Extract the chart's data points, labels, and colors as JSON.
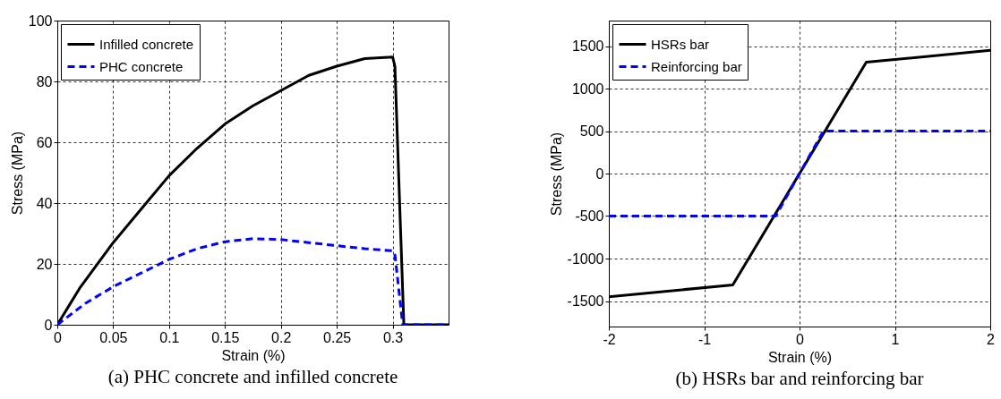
{
  "chart_data": [
    {
      "type": "line",
      "title": "(a) PHC concrete and infilled concrete",
      "xlabel": "Strain (%)",
      "ylabel": "Stress (MPa)",
      "xlim": [
        0,
        0.35
      ],
      "xticks": [
        0,
        0.05,
        0.1,
        0.15,
        0.2,
        0.25,
        0.3
      ],
      "ylim": [
        0,
        100
      ],
      "yticks": [
        0,
        20,
        40,
        60,
        80,
        100
      ],
      "grid": true,
      "legend": "top left",
      "series": [
        {
          "name": "Infilled concrete",
          "color": "#000000",
          "line_style": "solid",
          "x": [
            0,
            0.01,
            0.02,
            0.05,
            0.075,
            0.1,
            0.125,
            0.15,
            0.175,
            0.2,
            0.225,
            0.25,
            0.275,
            0.3,
            0.302,
            0.31,
            0.35
          ],
          "values": [
            0,
            6,
            12,
            27,
            38,
            49,
            58,
            66,
            72,
            77,
            82,
            85,
            87.5,
            88,
            85,
            0,
            0
          ]
        },
        {
          "name": "PHC concrete",
          "color": "#0000ff",
          "line_style": "dashed",
          "x": [
            0,
            0.025,
            0.05,
            0.075,
            0.1,
            0.125,
            0.15,
            0.175,
            0.2,
            0.225,
            0.25,
            0.275,
            0.3,
            0.302,
            0.309,
            0.35
          ],
          "values": [
            0,
            7,
            12.5,
            17,
            21.5,
            25,
            27.3,
            28.3,
            28,
            27,
            26,
            25,
            24.3,
            23,
            0,
            0
          ]
        }
      ]
    },
    {
      "type": "line",
      "title": "(b) HSRs bar and reinforcing bar",
      "xlabel": "Strain (%)",
      "ylabel": "Stress (MPa)",
      "xlim": [
        -2,
        2
      ],
      "xticks": [
        -2,
        -1,
        0,
        1,
        2
      ],
      "ylim": [
        -1800,
        1800
      ],
      "yticks": [
        -1500,
        -1000,
        -500,
        0,
        500,
        1000,
        1500
      ],
      "grid": true,
      "legend": "top left",
      "series": [
        {
          "name": "HSRs bar",
          "color": "#000000",
          "line_style": "solid",
          "x": [
            -2,
            -0.7,
            0.7,
            2
          ],
          "values": [
            -1450,
            -1310,
            1310,
            1450
          ]
        },
        {
          "name": "Reinforcing bar",
          "color": "#0000ff",
          "line_style": "dashed",
          "x": [
            -2,
            -0.25,
            0.25,
            2
          ],
          "values": [
            -500,
            -500,
            500,
            500
          ]
        }
      ]
    }
  ]
}
